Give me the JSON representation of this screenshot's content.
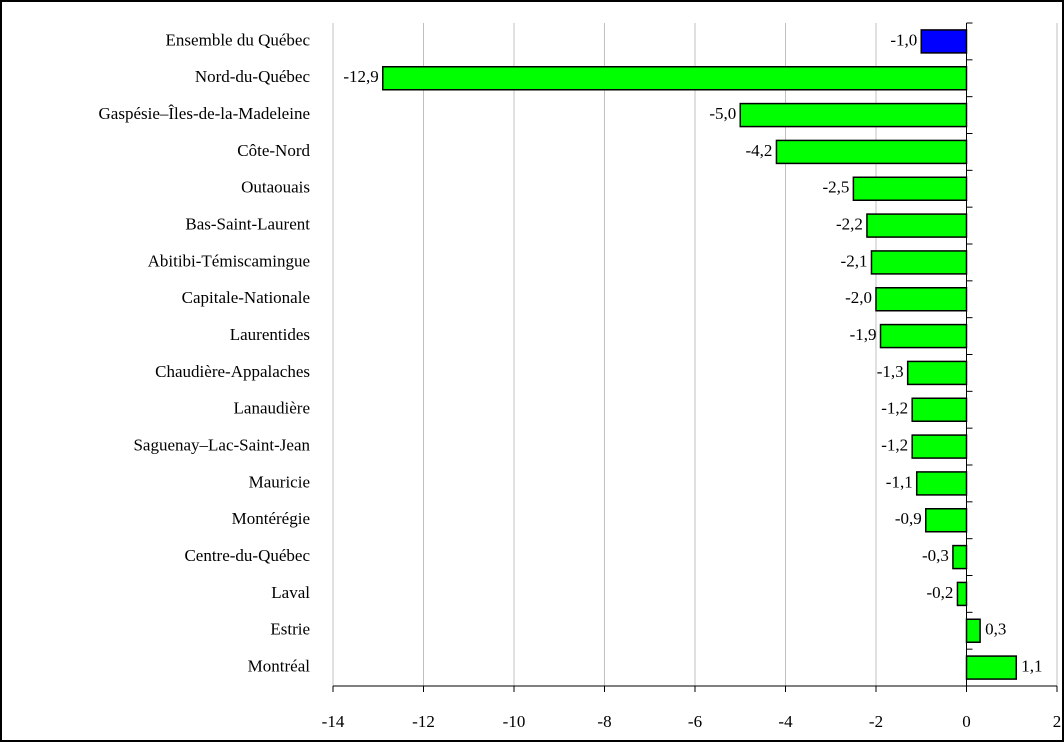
{
  "chart_data": {
    "type": "bar",
    "orientation": "horizontal",
    "categories": [
      "Ensemble du Québec",
      "Nord-du-Québec",
      "Gaspésie–Îles-de-la-Madeleine",
      "Côte-Nord",
      "Outaouais",
      "Bas-Saint-Laurent",
      "Abitibi-Témiscamingue",
      "Capitale-Nationale",
      "Laurentides",
      "Chaudière-Appalaches",
      "Lanaudière",
      "Saguenay–Lac-Saint-Jean",
      "Mauricie",
      "Montérégie",
      "Centre-du-Québec",
      "Laval",
      "Estrie",
      "Montréal"
    ],
    "values": [
      -1.0,
      -12.9,
      -5.0,
      -4.2,
      -2.5,
      -2.2,
      -2.1,
      -2.0,
      -1.9,
      -1.3,
      -1.2,
      -1.2,
      -1.1,
      -0.9,
      -0.3,
      -0.2,
      0.3,
      1.1
    ],
    "value_labels": [
      "-1,0",
      "-12,9",
      "-5,0",
      "-4,2",
      "-2,5",
      "-2,2",
      "-2,1",
      "-2,0",
      "-1,9",
      "-1,3",
      "-1,2",
      "-1,2",
      "-1,1",
      "-0,9",
      "-0,3",
      "-0,2",
      "0,3",
      "1,1"
    ],
    "colors": [
      "#0000ff",
      "#00ff00",
      "#00ff00",
      "#00ff00",
      "#00ff00",
      "#00ff00",
      "#00ff00",
      "#00ff00",
      "#00ff00",
      "#00ff00",
      "#00ff00",
      "#00ff00",
      "#00ff00",
      "#00ff00",
      "#00ff00",
      "#00ff00",
      "#00ff00",
      "#00ff00"
    ],
    "xlim": [
      -14,
      2
    ],
    "xticks": [
      -14,
      -12,
      -10,
      -8,
      -6,
      -4,
      -2,
      0,
      2
    ],
    "grid": true
  }
}
